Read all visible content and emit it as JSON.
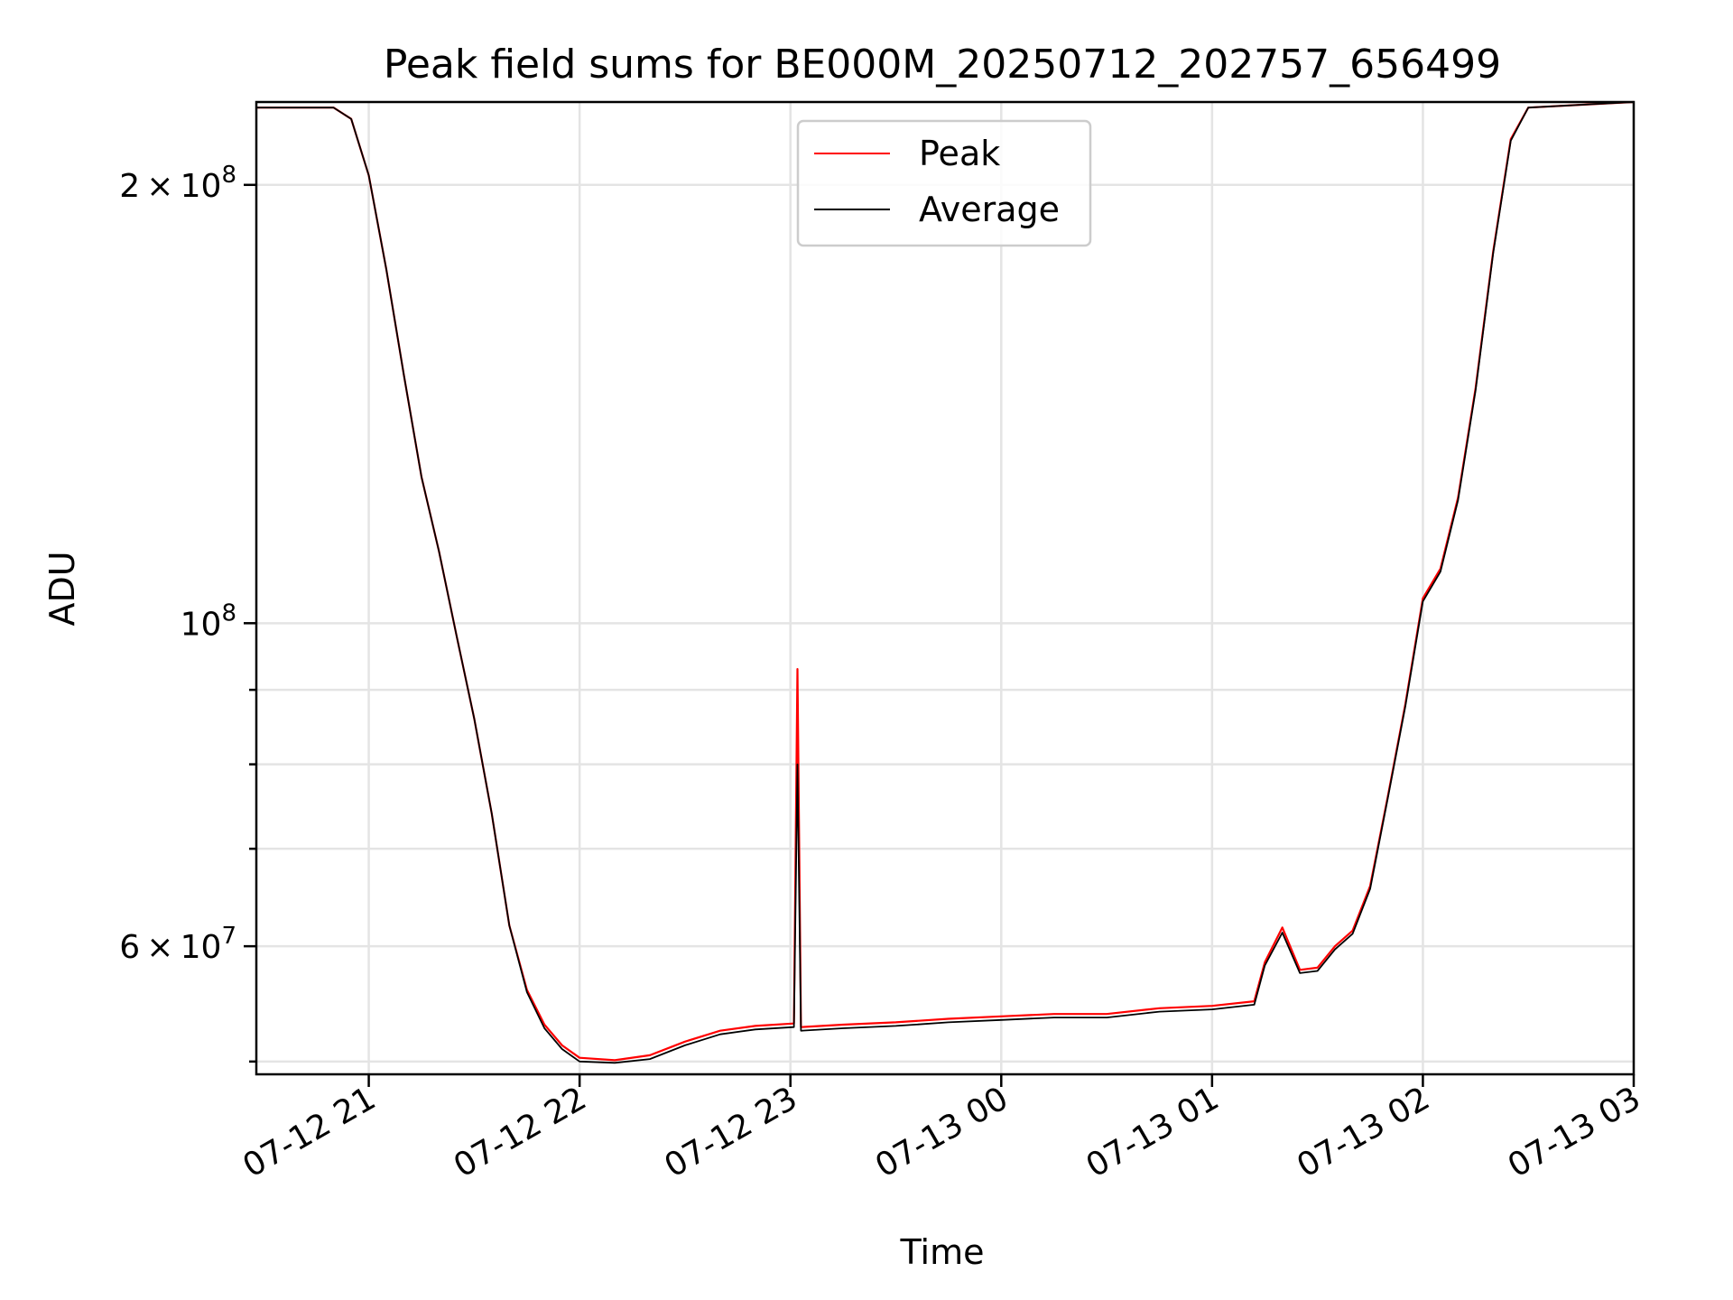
{
  "chart_data": {
    "type": "line",
    "title": "Peak field sums for BE000M_20250712_202757_656499",
    "xlabel": "Time",
    "ylabel": "ADU",
    "y_scale": "log",
    "x_range": [
      "07-12 20:28",
      "07-13 03:00"
    ],
    "ylim": [
      49000000,
      228000000
    ],
    "grid": true,
    "legend_position": "upper-center",
    "x_ticks": [
      {
        "value": "07-12 21:00",
        "label": "07-12 21"
      },
      {
        "value": "07-12 22:00",
        "label": "07-12 22"
      },
      {
        "value": "07-12 23:00",
        "label": "07-12 23"
      },
      {
        "value": "07-13 00:00",
        "label": "07-13 00"
      },
      {
        "value": "07-13 01:00",
        "label": "07-13 01"
      },
      {
        "value": "07-13 02:00",
        "label": "07-13 02"
      },
      {
        "value": "07-13 03:00",
        "label": "07-13 03"
      }
    ],
    "y_major_ticks": [
      {
        "value": 200000000,
        "mantissa": "2",
        "base": "10",
        "exponent": "8"
      },
      {
        "value": 100000000,
        "mantissa": "",
        "base": "10",
        "exponent": "8"
      },
      {
        "value": 60000000,
        "mantissa": "6",
        "base": "10",
        "exponent": "7"
      }
    ],
    "y_minor_ticks": [
      50000000,
      70000000,
      80000000,
      90000000
    ],
    "series": [
      {
        "name": "Peak",
        "color": "#ff0000",
        "points": [
          [
            "07-12 20:28",
            226000000
          ],
          [
            "07-12 20:50",
            226000000
          ],
          [
            "07-12 20:55",
            222000000
          ],
          [
            "07-12 21:00",
            203000000
          ],
          [
            "07-12 21:05",
            175000000
          ],
          [
            "07-12 21:10",
            148000000
          ],
          [
            "07-12 21:15",
            126000000
          ],
          [
            "07-12 21:20",
            112000000
          ],
          [
            "07-12 21:25",
            98000000
          ],
          [
            "07-12 21:30",
            86000000
          ],
          [
            "07-12 21:35",
            74000000
          ],
          [
            "07-12 21:40",
            62000000
          ],
          [
            "07-12 21:45",
            56000000
          ],
          [
            "07-12 21:50",
            53000000
          ],
          [
            "07-12 21:55",
            51300000
          ],
          [
            "07-12 22:00",
            50300000
          ],
          [
            "07-12 22:10",
            50100000
          ],
          [
            "07-12 22:20",
            50500000
          ],
          [
            "07-12 22:30",
            51600000
          ],
          [
            "07-12 22:40",
            52500000
          ],
          [
            "07-12 22:50",
            52900000
          ],
          [
            "07-12 23:01",
            53100000
          ],
          [
            "07-12 23:02",
            93000000
          ],
          [
            "07-12 23:03",
            52800000
          ],
          [
            "07-12 23:15",
            53000000
          ],
          [
            "07-12 23:30",
            53200000
          ],
          [
            "07-12 23:45",
            53500000
          ],
          [
            "07-13 00:00",
            53700000
          ],
          [
            "07-13 00:15",
            53900000
          ],
          [
            "07-13 00:30",
            53900000
          ],
          [
            "07-13 00:45",
            54400000
          ],
          [
            "07-13 01:00",
            54600000
          ],
          [
            "07-13 01:12",
            55000000
          ],
          [
            "07-13 01:15",
            58500000
          ],
          [
            "07-13 01:20",
            61800000
          ],
          [
            "07-13 01:25",
            57800000
          ],
          [
            "07-13 01:30",
            58000000
          ],
          [
            "07-13 01:35",
            60000000
          ],
          [
            "07-13 01:40",
            61500000
          ],
          [
            "07-13 01:45",
            66000000
          ],
          [
            "07-13 01:50",
            76000000
          ],
          [
            "07-13 01:55",
            88000000
          ],
          [
            "07-13 02:00",
            104000000
          ],
          [
            "07-13 02:05",
            109000000
          ],
          [
            "07-13 02:10",
            122000000
          ],
          [
            "07-13 02:15",
            145000000
          ],
          [
            "07-13 02:20",
            180000000
          ],
          [
            "07-13 02:25",
            215000000
          ],
          [
            "07-13 02:30",
            226000000
          ],
          [
            "07-13 03:00",
            228000000
          ]
        ]
      },
      {
        "name": "Average",
        "color": "#000000",
        "points": [
          [
            "07-12 20:28",
            226000000
          ],
          [
            "07-12 20:50",
            226000000
          ],
          [
            "07-12 20:55",
            222000000
          ],
          [
            "07-12 21:00",
            203000000
          ],
          [
            "07-12 21:05",
            175000000
          ],
          [
            "07-12 21:10",
            148000000
          ],
          [
            "07-12 21:15",
            126000000
          ],
          [
            "07-12 21:20",
            112000000
          ],
          [
            "07-12 21:25",
            98000000
          ],
          [
            "07-12 21:30",
            86000000
          ],
          [
            "07-12 21:35",
            74000000
          ],
          [
            "07-12 21:40",
            62000000
          ],
          [
            "07-12 21:45",
            55800000
          ],
          [
            "07-12 21:50",
            52700000
          ],
          [
            "07-12 21:55",
            51000000
          ],
          [
            "07-12 22:00",
            50000000
          ],
          [
            "07-12 22:10",
            49900000
          ],
          [
            "07-12 22:20",
            50200000
          ],
          [
            "07-12 22:30",
            51300000
          ],
          [
            "07-12 22:40",
            52200000
          ],
          [
            "07-12 22:50",
            52600000
          ],
          [
            "07-12 23:01",
            52800000
          ],
          [
            "07-12 23:02",
            80000000
          ],
          [
            "07-12 23:03",
            52500000
          ],
          [
            "07-12 23:15",
            52700000
          ],
          [
            "07-12 23:30",
            52900000
          ],
          [
            "07-12 23:45",
            53200000
          ],
          [
            "07-13 00:00",
            53400000
          ],
          [
            "07-13 00:15",
            53600000
          ],
          [
            "07-13 00:30",
            53600000
          ],
          [
            "07-13 00:45",
            54100000
          ],
          [
            "07-13 01:00",
            54300000
          ],
          [
            "07-13 01:12",
            54700000
          ],
          [
            "07-13 01:15",
            58200000
          ],
          [
            "07-13 01:20",
            61300000
          ],
          [
            "07-13 01:25",
            57500000
          ],
          [
            "07-13 01:30",
            57700000
          ],
          [
            "07-13 01:35",
            59700000
          ],
          [
            "07-13 01:40",
            61200000
          ],
          [
            "07-13 01:45",
            65700000
          ],
          [
            "07-13 01:50",
            75800000
          ],
          [
            "07-13 01:55",
            87700000
          ],
          [
            "07-13 02:00",
            103500000
          ],
          [
            "07-13 02:05",
            108500000
          ],
          [
            "07-13 02:10",
            121500000
          ],
          [
            "07-13 02:15",
            144500000
          ],
          [
            "07-13 02:20",
            179500000
          ],
          [
            "07-13 02:25",
            214500000
          ],
          [
            "07-13 02:30",
            226000000
          ],
          [
            "07-13 03:00",
            228000000
          ]
        ]
      }
    ]
  }
}
